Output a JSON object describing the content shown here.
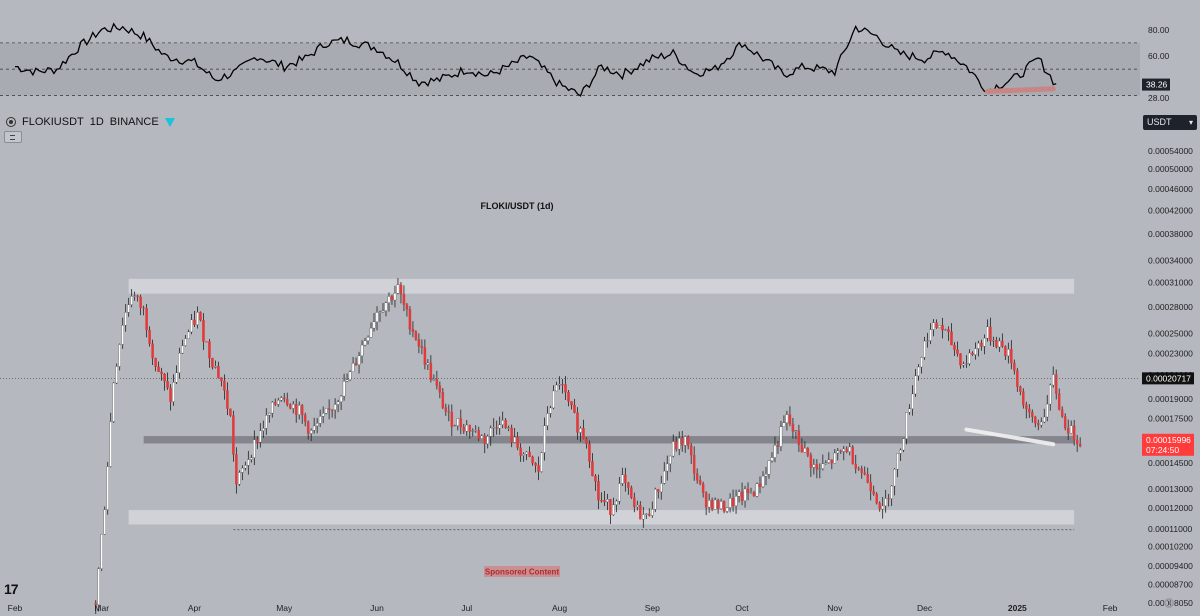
{
  "symbol": {
    "name": "FLOKIUSDT",
    "interval": "1D",
    "exchange": "BINANCE"
  },
  "currency_selector": "USDT",
  "colors": {
    "background": "#b5b8bf",
    "up": "#ffffff",
    "down": "#e03b3b",
    "wick": "#222222",
    "rsi_line": "#000000",
    "zone": "#d9dbe0",
    "support_zone": "#7f8187",
    "price_badge": "#ff3b3b",
    "trendline": "#f2f2f2",
    "rsi_trendline": "#c98484"
  },
  "chart_data": [
    {
      "type": "line",
      "name": "RSI",
      "y_ticks": [
        "80.00",
        "60.00",
        "28.00"
      ],
      "current_value": "38.26",
      "bands": [
        70,
        50,
        30
      ],
      "ylim": [
        25,
        92
      ],
      "x": [
        "2024-02-01",
        "2024-02-08",
        "2024-02-15",
        "2024-02-22",
        "2024-03-01",
        "2024-03-08",
        "2024-03-15",
        "2024-03-22",
        "2024-04-01",
        "2024-04-08",
        "2024-04-15",
        "2024-04-22",
        "2024-05-01",
        "2024-05-08",
        "2024-05-15",
        "2024-05-22",
        "2024-06-01",
        "2024-06-08",
        "2024-06-15",
        "2024-06-22",
        "2024-07-01",
        "2024-07-08",
        "2024-07-15",
        "2024-07-22",
        "2024-08-01",
        "2024-08-08",
        "2024-08-15",
        "2024-08-22",
        "2024-09-01",
        "2024-09-08",
        "2024-09-15",
        "2024-09-22",
        "2024-10-01",
        "2024-10-08",
        "2024-10-15",
        "2024-10-22",
        "2024-11-01",
        "2024-11-08",
        "2024-11-15",
        "2024-11-22",
        "2024-12-01",
        "2024-12-08",
        "2024-12-15",
        "2024-12-22",
        "2025-01-01",
        "2025-01-08",
        "2025-01-14"
      ],
      "values": [
        52,
        48,
        50,
        66,
        80,
        82,
        75,
        60,
        55,
        42,
        48,
        60,
        52,
        58,
        70,
        72,
        66,
        55,
        40,
        42,
        50,
        45,
        52,
        60,
        38,
        30,
        52,
        46,
        58,
        62,
        47,
        50,
        70,
        58,
        46,
        52,
        48,
        82,
        75,
        62,
        58,
        64,
        52,
        34,
        44,
        58,
        38
      ]
    },
    {
      "type": "candlestick",
      "title": "FLOKI/USDT (1d)",
      "annotation": "Sponsored Content",
      "x_ticks": [
        "Feb",
        "Mar",
        "Apr",
        "May",
        "Jun",
        "Jul",
        "Aug",
        "Sep",
        "Oct",
        "Nov",
        "Dec",
        "2025",
        "Feb"
      ],
      "y_ticks": [
        "0.00054000",
        "0.00050000",
        "0.00046000",
        "0.00042000",
        "0.00038000",
        "0.00034000",
        "0.00031000",
        "0.00028000",
        "0.00025000",
        "0.00023000",
        "0.00021000",
        "0.00019000",
        "0.00017500",
        "0.00014500",
        "0.00013000",
        "0.00012000",
        "0.00011000",
        "0.00010200",
        "0.00009400",
        "0.00008700",
        "0.00008050"
      ],
      "y_tick_values": [
        0.00054,
        0.0005,
        0.00046,
        0.00042,
        0.00038,
        0.00034,
        0.00031,
        0.00028,
        0.00025,
        0.00023,
        0.00021,
        0.00019,
        0.000175,
        0.000145,
        0.00013,
        0.00012,
        0.00011,
        0.000102,
        9.4e-05,
        8.7e-05,
        8.05e-05
      ],
      "log_scale": true,
      "ylim": [
        7.88e-05,
        0.000565
      ],
      "xlim": [
        "2024-01-27",
        "2025-02-11"
      ],
      "price_lines": [
        {
          "label": "0.00020717",
          "value": 0.00020717
        },
        {
          "label": "0.00015996",
          "value": 0.00015996,
          "countdown": "07:24:50"
        }
      ],
      "zones": [
        {
          "kind": "resistance",
          "from": 0.000296,
          "to": 0.000315,
          "start": "2024-03-10",
          "end": "2025-01-20"
        },
        {
          "kind": "support",
          "from": 0.0001575,
          "to": 0.0001625,
          "start": "2024-03-15",
          "end": "2025-01-20"
        },
        {
          "kind": "demand",
          "from": 0.000112,
          "to": 0.000119,
          "start": "2024-03-10",
          "end": "2025-01-20"
        }
      ],
      "reference_line": {
        "value": 0.0001095,
        "start": "2024-04-14",
        "end": "2025-01-20"
      },
      "trendline": {
        "start": "2024-12-15",
        "start_value": 0.000167,
        "end": "2025-01-13",
        "end_value": 0.000157
      },
      "anchors": [
        [
          "2024-02-28",
          8.05e-05
        ],
        [
          "2024-03-02",
          0.000122
        ],
        [
          "2024-03-05",
          0.000205
        ],
        [
          "2024-03-08",
          0.000262
        ],
        [
          "2024-03-11",
          0.000297
        ],
        [
          "2024-03-15",
          0.000275
        ],
        [
          "2024-03-19",
          0.00022
        ],
        [
          "2024-03-24",
          0.00019
        ],
        [
          "2024-03-28",
          0.00024
        ],
        [
          "2024-04-02",
          0.00027
        ],
        [
          "2024-04-06",
          0.00023
        ],
        [
          "2024-04-10",
          0.000205
        ],
        [
          "2024-04-13",
          0.000175
        ],
        [
          "2024-04-15",
          0.000132
        ],
        [
          "2024-04-18",
          0.000145
        ],
        [
          "2024-04-24",
          0.00017
        ],
        [
          "2024-04-30",
          0.000195
        ],
        [
          "2024-05-06",
          0.00018
        ],
        [
          "2024-05-10",
          0.000165
        ],
        [
          "2024-05-16",
          0.00018
        ],
        [
          "2024-05-23",
          0.00021
        ],
        [
          "2024-05-28",
          0.000245
        ],
        [
          "2024-06-01",
          0.000275
        ],
        [
          "2024-06-05",
          0.00029
        ],
        [
          "2024-06-08",
          0.000302
        ],
        [
          "2024-06-11",
          0.00027
        ],
        [
          "2024-06-15",
          0.00024
        ],
        [
          "2024-06-19",
          0.00021
        ],
        [
          "2024-06-25",
          0.000175
        ],
        [
          "2024-07-02",
          0.000168
        ],
        [
          "2024-07-07",
          0.00016
        ],
        [
          "2024-07-12",
          0.000175
        ],
        [
          "2024-07-17",
          0.000158
        ],
        [
          "2024-07-21",
          0.000148
        ],
        [
          "2024-07-25",
          0.00014
        ],
        [
          "2024-07-28",
          0.00018
        ],
        [
          "2024-08-01",
          0.000205
        ],
        [
          "2024-08-04",
          0.000185
        ],
        [
          "2024-08-07",
          0.00017
        ],
        [
          "2024-08-10",
          0.00016
        ],
        [
          "2024-08-14",
          0.000125
        ],
        [
          "2024-08-18",
          0.00012
        ],
        [
          "2024-08-22",
          0.000135
        ],
        [
          "2024-08-26",
          0.00012
        ],
        [
          "2024-08-30",
          0.000115
        ],
        [
          "2024-09-04",
          0.000135
        ],
        [
          "2024-09-08",
          0.000155
        ],
        [
          "2024-09-12",
          0.00016
        ],
        [
          "2024-09-18",
          0.000125
        ],
        [
          "2024-09-24",
          0.00012
        ],
        [
          "2024-09-30",
          0.000125
        ],
        [
          "2024-10-06",
          0.00013
        ],
        [
          "2024-10-10",
          0.000145
        ],
        [
          "2024-10-16",
          0.000175
        ],
        [
          "2024-10-20",
          0.000158
        ],
        [
          "2024-10-26",
          0.00014
        ],
        [
          "2024-11-01",
          0.000148
        ],
        [
          "2024-11-05",
          0.000155
        ],
        [
          "2024-11-10",
          0.00014
        ],
        [
          "2024-11-14",
          0.00013
        ],
        [
          "2024-11-17",
          0.000118
        ],
        [
          "2024-11-21",
          0.00014
        ],
        [
          "2024-11-24",
          0.000165
        ],
        [
          "2024-11-28",
          0.00021
        ],
        [
          "2024-12-02",
          0.00025
        ],
        [
          "2024-12-06",
          0.00026
        ],
        [
          "2024-12-10",
          0.00024
        ],
        [
          "2024-12-14",
          0.00022
        ],
        [
          "2024-12-18",
          0.000235
        ],
        [
          "2024-12-22",
          0.00025
        ],
        [
          "2024-12-26",
          0.00024
        ],
        [
          "2024-12-30",
          0.000225
        ],
        [
          "2025-01-02",
          0.000195
        ],
        [
          "2025-01-05",
          0.000175
        ],
        [
          "2025-01-08",
          0.00017
        ],
        [
          "2025-01-11",
          0.000185
        ],
        [
          "2025-01-13",
          0.000207
        ],
        [
          "2025-01-16",
          0.000175
        ],
        [
          "2025-01-19",
          0.000165
        ],
        [
          "2025-01-22",
          0.00016
        ]
      ]
    }
  ]
}
